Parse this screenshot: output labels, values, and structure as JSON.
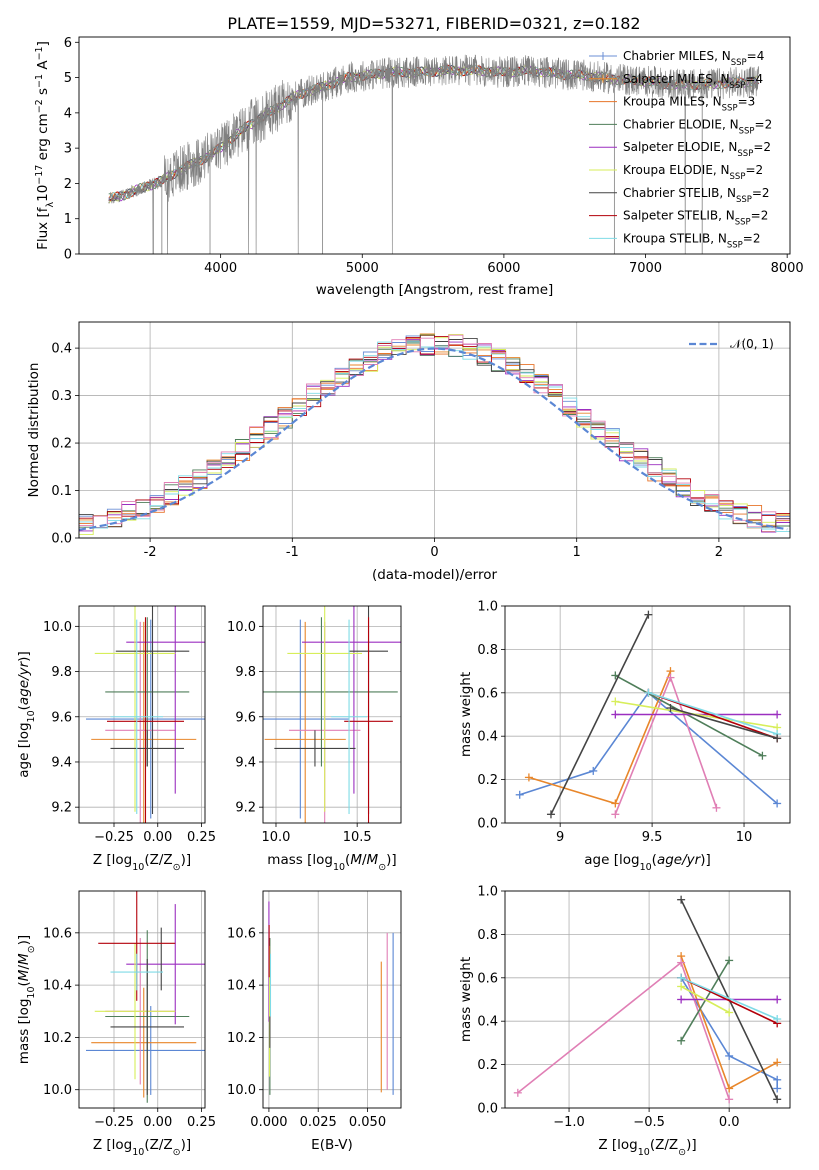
{
  "figure": {
    "title": "PLATE=1559, MJD=53271, FIBERID=0321, z=0.182"
  },
  "chart_data": [
    {
      "id": "spectrum",
      "type": "line",
      "xlabel": "wavelength [Angstrom, rest frame]",
      "ylabel": "Flux [f$_\\lambda$10$^{-17}$ erg cm$^{-2}$ s$^{-1}$ A$^{-1}$]",
      "ylabel_display": {
        "main": "Flux [f",
        "sub1": "λ",
        "mid": "10",
        "sup1": "−17",
        "rest1": " erg cm",
        "sup2": "−2",
        "rest2": " s",
        "sup3": "−1",
        "rest3": " A",
        "sup4": "−1",
        "rest4": "]"
      },
      "xlim": [
        3000,
        8020
      ],
      "ylim": [
        0,
        6.15
      ],
      "xticks": [
        4000,
        5000,
        6000,
        7000,
        8000
      ],
      "yticks": [
        0,
        1,
        2,
        3,
        4,
        5,
        6
      ],
      "grid": false,
      "legend_position": "upper right",
      "continuum": {
        "x": [
          3200,
          3300,
          3400,
          3500,
          3600,
          3700,
          3800,
          3900,
          4000,
          4100,
          4200,
          4300,
          4400,
          4500,
          4600,
          4700,
          4800,
          4900,
          5000,
          5200,
          5400,
          5600,
          5800,
          6000,
          6200,
          6400,
          6600,
          6800,
          7000,
          7200,
          7400,
          7600,
          7800
        ],
        "y": [
          1.55,
          1.65,
          1.8,
          1.95,
          2.1,
          2.35,
          2.55,
          2.75,
          3.0,
          3.35,
          3.65,
          3.9,
          4.15,
          4.4,
          4.6,
          4.7,
          4.85,
          5.0,
          5.05,
          5.15,
          5.15,
          5.2,
          5.2,
          5.15,
          5.2,
          5.1,
          5.05,
          4.95,
          4.9,
          4.8,
          4.8,
          4.85,
          4.9
        ]
      },
      "series": [
        {
          "name": "Chabrier MILES, N$_{SSP}$=4",
          "label": "Chabrier MILES, N",
          "sub": "SSP",
          "tail": "=4",
          "color": "#6b8fd6"
        },
        {
          "name": "Salpeter MILES, N$_{SSP}$=4",
          "label": "Salpeter MILES, N",
          "sub": "SSP",
          "tail": "=4",
          "color": "#e8862a"
        },
        {
          "name": "Kroupa MILES, N$_{SSP}$=3",
          "label": "Kroupa MILES, N",
          "sub": "SSP",
          "tail": "=3",
          "color": "#e7742a"
        },
        {
          "name": "Chabrier ELODIE, N$_{SSP}$=2",
          "label": "Chabrier ELODIE, N",
          "sub": "SSP",
          "tail": "=2",
          "color": "#4f7e5a"
        },
        {
          "name": "Salpeter ELODIE, N$_{SSP}$=2",
          "label": "Salpeter ELODIE, N",
          "sub": "SSP",
          "tail": "=2",
          "color": "#9b2fc0"
        },
        {
          "name": "Kroupa ELODIE, N$_{SSP}$=2",
          "label": "Kroupa ELODIE, N",
          "sub": "SSP",
          "tail": "=2",
          "color": "#d7ee5a"
        },
        {
          "name": "Chabrier STELIB, N$_{SSP}$=2",
          "label": "Chabrier STELIB, N",
          "sub": "SSP",
          "tail": "=2",
          "color": "#444444"
        },
        {
          "name": "Salpeter STELIB, N$_{SSP}$=2",
          "label": "Salpeter STELIB, N",
          "sub": "SSP",
          "tail": "=2",
          "color": "#b3000a"
        },
        {
          "name": "Kroupa STELIB, N$_{SSP}$=2",
          "label": "Kroupa STELIB, N",
          "sub": "SSP",
          "tail": "=2",
          "color": "#7fdbe6"
        }
      ],
      "data_color": "#808080"
    },
    {
      "id": "residuals",
      "type": "histogram",
      "xlabel": "(data-model)/error",
      "ylabel": "Normed distribution",
      "xlim": [
        -2.5,
        2.5
      ],
      "ylim": [
        0,
        0.455
      ],
      "xticks": [
        -2,
        -1,
        0,
        1,
        2
      ],
      "yticks": [
        0.0,
        0.1,
        0.2,
        0.3,
        0.4
      ],
      "grid": true,
      "legend_position": "upper right",
      "gaussian": {
        "name": "$\\mathcal{N}(0,1)$",
        "label": "𝒩(0, 1)",
        "mean": 0,
        "sigma": 1,
        "color": "#5b87d4"
      },
      "bin_width": 0.1,
      "series_colors": [
        "#6b8fd6",
        "#e8862a",
        "#e7742a",
        "#4f7e5a",
        "#9b2fc0",
        "#d7ee5a",
        "#444444",
        "#b3000a",
        "#7fdbe6",
        "#e07fb5"
      ]
    },
    {
      "id": "z_age",
      "type": "errorbar",
      "xlabel": "Z [log$_{10}$(Z/Z$_\\odot$)]",
      "ylabel": "age  [log$_{10}$(age/yr)]",
      "xlim": [
        -0.45,
        0.27
      ],
      "ylim": [
        9.13,
        10.09
      ],
      "xticks": [
        -0.25,
        0.0,
        0.25
      ],
      "xticklabels": [
        "−0.25",
        "0.00",
        "0.25"
      ],
      "yticks": [
        9.2,
        9.4,
        9.6,
        9.8,
        10.0
      ],
      "grid": true,
      "points": [
        {
          "x": -0.04,
          "xerr": 0.37,
          "y": 9.59,
          "yerr": 0.44,
          "color": "#5b87d4"
        },
        {
          "x": -0.08,
          "xerr": 0.3,
          "y": 9.5,
          "yerr": 0.52,
          "color": "#e8862a"
        },
        {
          "x": -0.1,
          "xerr": 0.2,
          "y": 9.54,
          "yerr": 0.48,
          "color": "#e07fb5"
        },
        {
          "x": -0.06,
          "xerr": 0.24,
          "y": 9.71,
          "yerr": 0.33,
          "color": "#4f7e5a"
        },
        {
          "x": 0.1,
          "xerr": 0.28,
          "y": 9.93,
          "yerr": 0.67,
          "color": "#9b2fc0"
        },
        {
          "x": -0.13,
          "xerr": 0.23,
          "y": 9.88,
          "yerr": 0.7,
          "color": "#d7ee5a"
        },
        {
          "x": -0.06,
          "xerr": 0.21,
          "y": 9.46,
          "yerr": 0.08,
          "color": "#444444"
        },
        {
          "x": -0.03,
          "xerr": 0.21,
          "y": 9.89,
          "yerr": 0.72,
          "color": "#444444"
        },
        {
          "x": -0.07,
          "xerr": 0.22,
          "y": 9.58,
          "yerr": 0.46,
          "color": "#b3000a"
        },
        {
          "x": -0.12,
          "xerr": 0.15,
          "y": 9.6,
          "yerr": 0.43,
          "color": "#7fdbe6"
        }
      ]
    },
    {
      "id": "mass_age",
      "type": "errorbar",
      "xlabel": "mass [log$_{10}$(M/M$_\\odot$)]",
      "ylabel": "",
      "xlim": [
        9.92,
        10.77
      ],
      "ylim": [
        9.13,
        10.09
      ],
      "xticks": [
        10.0,
        10.5
      ],
      "xticklabels": [
        "10.0",
        "10.5"
      ],
      "yticks": [
        9.2,
        9.4,
        9.6,
        9.8,
        10.0
      ],
      "grid": true,
      "points": [
        {
          "x": 10.15,
          "xerr": 0.3,
          "y": 9.59,
          "yerr": 0.44,
          "color": "#5b87d4"
        },
        {
          "x": 10.18,
          "xerr": 0.25,
          "y": 9.5,
          "yerr": 0.52,
          "color": "#e8862a"
        },
        {
          "x": 10.3,
          "xerr": 0.22,
          "y": 9.54,
          "yerr": 0.48,
          "color": "#e07fb5"
        },
        {
          "x": 10.28,
          "xerr": 0.47,
          "y": 9.71,
          "yerr": 0.33,
          "color": "#4f7e5a"
        },
        {
          "x": 10.48,
          "xerr": 0.32,
          "y": 9.93,
          "yerr": 0.67,
          "color": "#9b2fc0"
        },
        {
          "x": 10.3,
          "xerr": 0.23,
          "y": 9.88,
          "yerr": 0.7,
          "color": "#d7ee5a"
        },
        {
          "x": 10.24,
          "xerr": 0.25,
          "y": 9.46,
          "yerr": 0.08,
          "color": "#444444"
        },
        {
          "x": 10.57,
          "xerr": 0.12,
          "y": 9.89,
          "yerr": 0.72,
          "color": "#444444"
        },
        {
          "x": 10.57,
          "xerr": 0.15,
          "y": 9.58,
          "yerr": 0.46,
          "color": "#b3000a"
        },
        {
          "x": 10.45,
          "xerr": 0.11,
          "y": 9.6,
          "yerr": 0.43,
          "color": "#7fdbe6"
        }
      ]
    },
    {
      "id": "age_weight",
      "type": "line",
      "xlabel": "age  [log$_{10}$(age/yr)]",
      "ylabel": "mass weight",
      "xlim": [
        8.7,
        10.25
      ],
      "ylim": [
        0,
        1.0
      ],
      "xticks": [
        9.0,
        9.5,
        10.0
      ],
      "yticks": [
        0.0,
        0.2,
        0.4,
        0.6,
        0.8,
        1.0
      ],
      "grid": true,
      "series": [
        {
          "color": "#5b87d4",
          "x": [
            8.78,
            9.18,
            9.48,
            10.18
          ],
          "y": [
            0.13,
            0.24,
            0.6,
            0.09
          ]
        },
        {
          "color": "#e8862a",
          "x": [
            8.83,
            9.3,
            9.6
          ],
          "y": [
            0.21,
            0.09,
            0.7
          ]
        },
        {
          "color": "#e07fb5",
          "x": [
            9.3,
            9.6,
            9.85
          ],
          "y": [
            0.04,
            0.67,
            0.07
          ]
        },
        {
          "color": "#4f7e5a",
          "x": [
            9.3,
            10.1
          ],
          "y": [
            0.68,
            0.31
          ]
        },
        {
          "color": "#9b2fc0",
          "x": [
            9.3,
            10.18
          ],
          "y": [
            0.5,
            0.5
          ]
        },
        {
          "color": "#d7ee5a",
          "x": [
            9.3,
            10.18
          ],
          "y": [
            0.56,
            0.44
          ]
        },
        {
          "color": "#444444",
          "x": [
            8.95,
            9.48
          ],
          "y": [
            0.04,
            0.96
          ]
        },
        {
          "color": "#b3000a",
          "x": [
            9.48,
            10.18
          ],
          "y": [
            0.6,
            0.39
          ]
        },
        {
          "color": "#7fdbe6",
          "x": [
            9.48,
            10.18
          ],
          "y": [
            0.6,
            0.41
          ]
        },
        {
          "color": "#444444",
          "x": [
            9.6,
            10.18
          ],
          "y": [
            0.53,
            0.39
          ]
        }
      ]
    },
    {
      "id": "z_mass",
      "type": "errorbar",
      "xlabel": "Z [log$_{10}$(Z/Z$_\\odot$)]",
      "ylabel": "mass [log$_{10}$(M/M$_\\odot$)]",
      "xlim": [
        -0.45,
        0.27
      ],
      "ylim": [
        9.93,
        10.76
      ],
      "xticks": [
        -0.25,
        0.0,
        0.25
      ],
      "xticklabels": [
        "−0.25",
        "0.00",
        "0.25"
      ],
      "yticks": [
        10.0,
        10.2,
        10.4,
        10.6
      ],
      "grid": true,
      "points": [
        {
          "x": -0.04,
          "xerr": 0.37,
          "y": 10.15,
          "yerr": 0.17,
          "color": "#5b87d4"
        },
        {
          "x": -0.08,
          "xerr": 0.3,
          "y": 10.18,
          "yerr": 0.21,
          "color": "#e8862a"
        },
        {
          "x": -0.1,
          "xerr": 0.2,
          "y": 10.3,
          "yerr": 0.28,
          "color": "#e07fb5"
        },
        {
          "x": -0.06,
          "xerr": 0.24,
          "y": 10.28,
          "yerr": 0.33,
          "color": "#4f7e5a"
        },
        {
          "x": 0.1,
          "xerr": 0.28,
          "y": 10.48,
          "yerr": 0.23,
          "color": "#9b2fc0"
        },
        {
          "x": -0.13,
          "xerr": 0.23,
          "y": 10.3,
          "yerr": 0.26,
          "color": "#d7ee5a"
        },
        {
          "x": -0.06,
          "xerr": 0.21,
          "y": 10.24,
          "yerr": 0.26,
          "color": "#444444"
        },
        {
          "x": 0.02,
          "xerr": 0.0,
          "y": 10.5,
          "yerr": 0.12,
          "color": "#444444"
        },
        {
          "x": -0.12,
          "xerr": 0.22,
          "y": 10.56,
          "yerr": 0.22,
          "color": "#b3000a"
        },
        {
          "x": -0.12,
          "xerr": 0.15,
          "y": 10.45,
          "yerr": 0.07,
          "color": "#7fdbe6"
        }
      ]
    },
    {
      "id": "ebv_mass",
      "type": "errorbar",
      "xlabel": "E(B-V)",
      "ylabel": "",
      "xlim": [
        -0.003,
        0.067
      ],
      "ylim": [
        9.93,
        10.76
      ],
      "xticks": [
        0.0,
        0.025,
        0.05
      ],
      "xticklabels": [
        "0.000",
        "0.025",
        "0.050"
      ],
      "yticks": [
        10.0,
        10.2,
        10.4,
        10.6
      ],
      "grid": true,
      "points": [
        {
          "x": 0.063,
          "xerr": 0.0,
          "y": 10.29,
          "yerr": 0.31,
          "color": "#5b87d4"
        },
        {
          "x": 0.057,
          "xerr": 0.0,
          "y": 10.24,
          "yerr": 0.25,
          "color": "#e8862a"
        },
        {
          "x": 0.06,
          "xerr": 0.0,
          "y": 10.3,
          "yerr": 0.3,
          "color": "#e07fb5"
        },
        {
          "x": 0.0005,
          "xerr": 0.0,
          "y": 10.28,
          "yerr": 0.3,
          "color": "#4f7e5a"
        },
        {
          "x": 0.0,
          "xerr": 0.0,
          "y": 10.49,
          "yerr": 0.23,
          "color": "#9b2fc0"
        },
        {
          "x": 0.0003,
          "xerr": 0.0,
          "y": 10.3,
          "yerr": 0.25,
          "color": "#d7ee5a"
        },
        {
          "x": 0.0005,
          "xerr": 0.0,
          "y": 10.22,
          "yerr": 0.06,
          "color": "#444444"
        },
        {
          "x": 0.0001,
          "xerr": 0.0,
          "y": 10.53,
          "yerr": 0.1,
          "color": "#b3000a"
        },
        {
          "x": 0.0008,
          "xerr": 0.0,
          "y": 10.4,
          "yerr": 0.12,
          "color": "#7fdbe6"
        }
      ]
    },
    {
      "id": "z_weight",
      "type": "line",
      "xlabel": "Z [log$_{10}$(Z/Z$_\\odot$)]",
      "ylabel": "mass weight",
      "xlim": [
        -1.4,
        0.38
      ],
      "ylim": [
        0,
        1.0
      ],
      "xticks": [
        -1.0,
        -0.5,
        0.0
      ],
      "xticklabels": [
        "−1.0",
        "−0.5",
        "0.0"
      ],
      "yticks": [
        0.0,
        0.2,
        0.4,
        0.6,
        0.8,
        1.0
      ],
      "grid": true,
      "series": [
        {
          "color": "#5b87d4",
          "x": [
            -0.3,
            0.0,
            0.3,
            0.3
          ],
          "y": [
            0.6,
            0.24,
            0.13,
            0.09
          ]
        },
        {
          "color": "#e8862a",
          "x": [
            -0.3,
            0.0,
            0.3
          ],
          "y": [
            0.7,
            0.09,
            0.21
          ]
        },
        {
          "color": "#e07fb5",
          "x": [
            -1.32,
            -0.3,
            0.0
          ],
          "y": [
            0.07,
            0.67,
            0.04
          ]
        },
        {
          "color": "#4f7e5a",
          "x": [
            -0.3,
            0.0
          ],
          "y": [
            0.31,
            0.68
          ]
        },
        {
          "color": "#9b2fc0",
          "x": [
            -0.3,
            0.3
          ],
          "y": [
            0.5,
            0.5
          ]
        },
        {
          "color": "#d7ee5a",
          "x": [
            -0.3,
            0.0
          ],
          "y": [
            0.56,
            0.44
          ]
        },
        {
          "color": "#444444",
          "x": [
            -0.3,
            0.3
          ],
          "y": [
            0.96,
            0.04
          ]
        },
        {
          "color": "#b3000a",
          "x": [
            -0.3,
            0.3
          ],
          "y": [
            0.6,
            0.39
          ]
        },
        {
          "color": "#7fdbe6",
          "x": [
            -0.3,
            0.3
          ],
          "y": [
            0.6,
            0.41
          ]
        }
      ]
    }
  ]
}
